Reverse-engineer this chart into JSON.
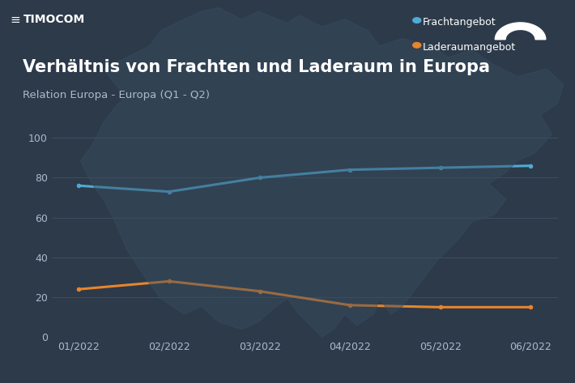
{
  "title": "Verhältnis von Frachten und Laderaum in Europa",
  "subtitle": "Relation Europa - Europa (Q1 - Q2)",
  "brand": "TIMOCOM",
  "x_labels": [
    "01/2022",
    "02/2022",
    "03/2022",
    "04/2022",
    "05/2022",
    "06/2022"
  ],
  "frachtangebot": [
    76,
    73,
    80,
    84,
    85,
    86
  ],
  "laderaumangebot": [
    24,
    28,
    23,
    16,
    15,
    15
  ],
  "ylim": [
    0,
    100
  ],
  "yticks": [
    0,
    20,
    40,
    60,
    80,
    100
  ],
  "line_color_fracht": "#4faad4",
  "line_color_lader": "#e8852a",
  "background_color": "#2d3a4a",
  "map_color": "#374c60",
  "grid_color": "#445566",
  "text_color": "#ffffff",
  "axis_text_color": "#aabbcc",
  "legend_fracht": "Frachtangebot",
  "legend_lader": "Laderaumangebot",
  "linewidth": 2.2,
  "marker_size": 4,
  "title_fontsize": 15,
  "subtitle_fontsize": 9.5,
  "brand_fontsize": 10,
  "legend_fontsize": 9,
  "tick_fontsize": 9
}
